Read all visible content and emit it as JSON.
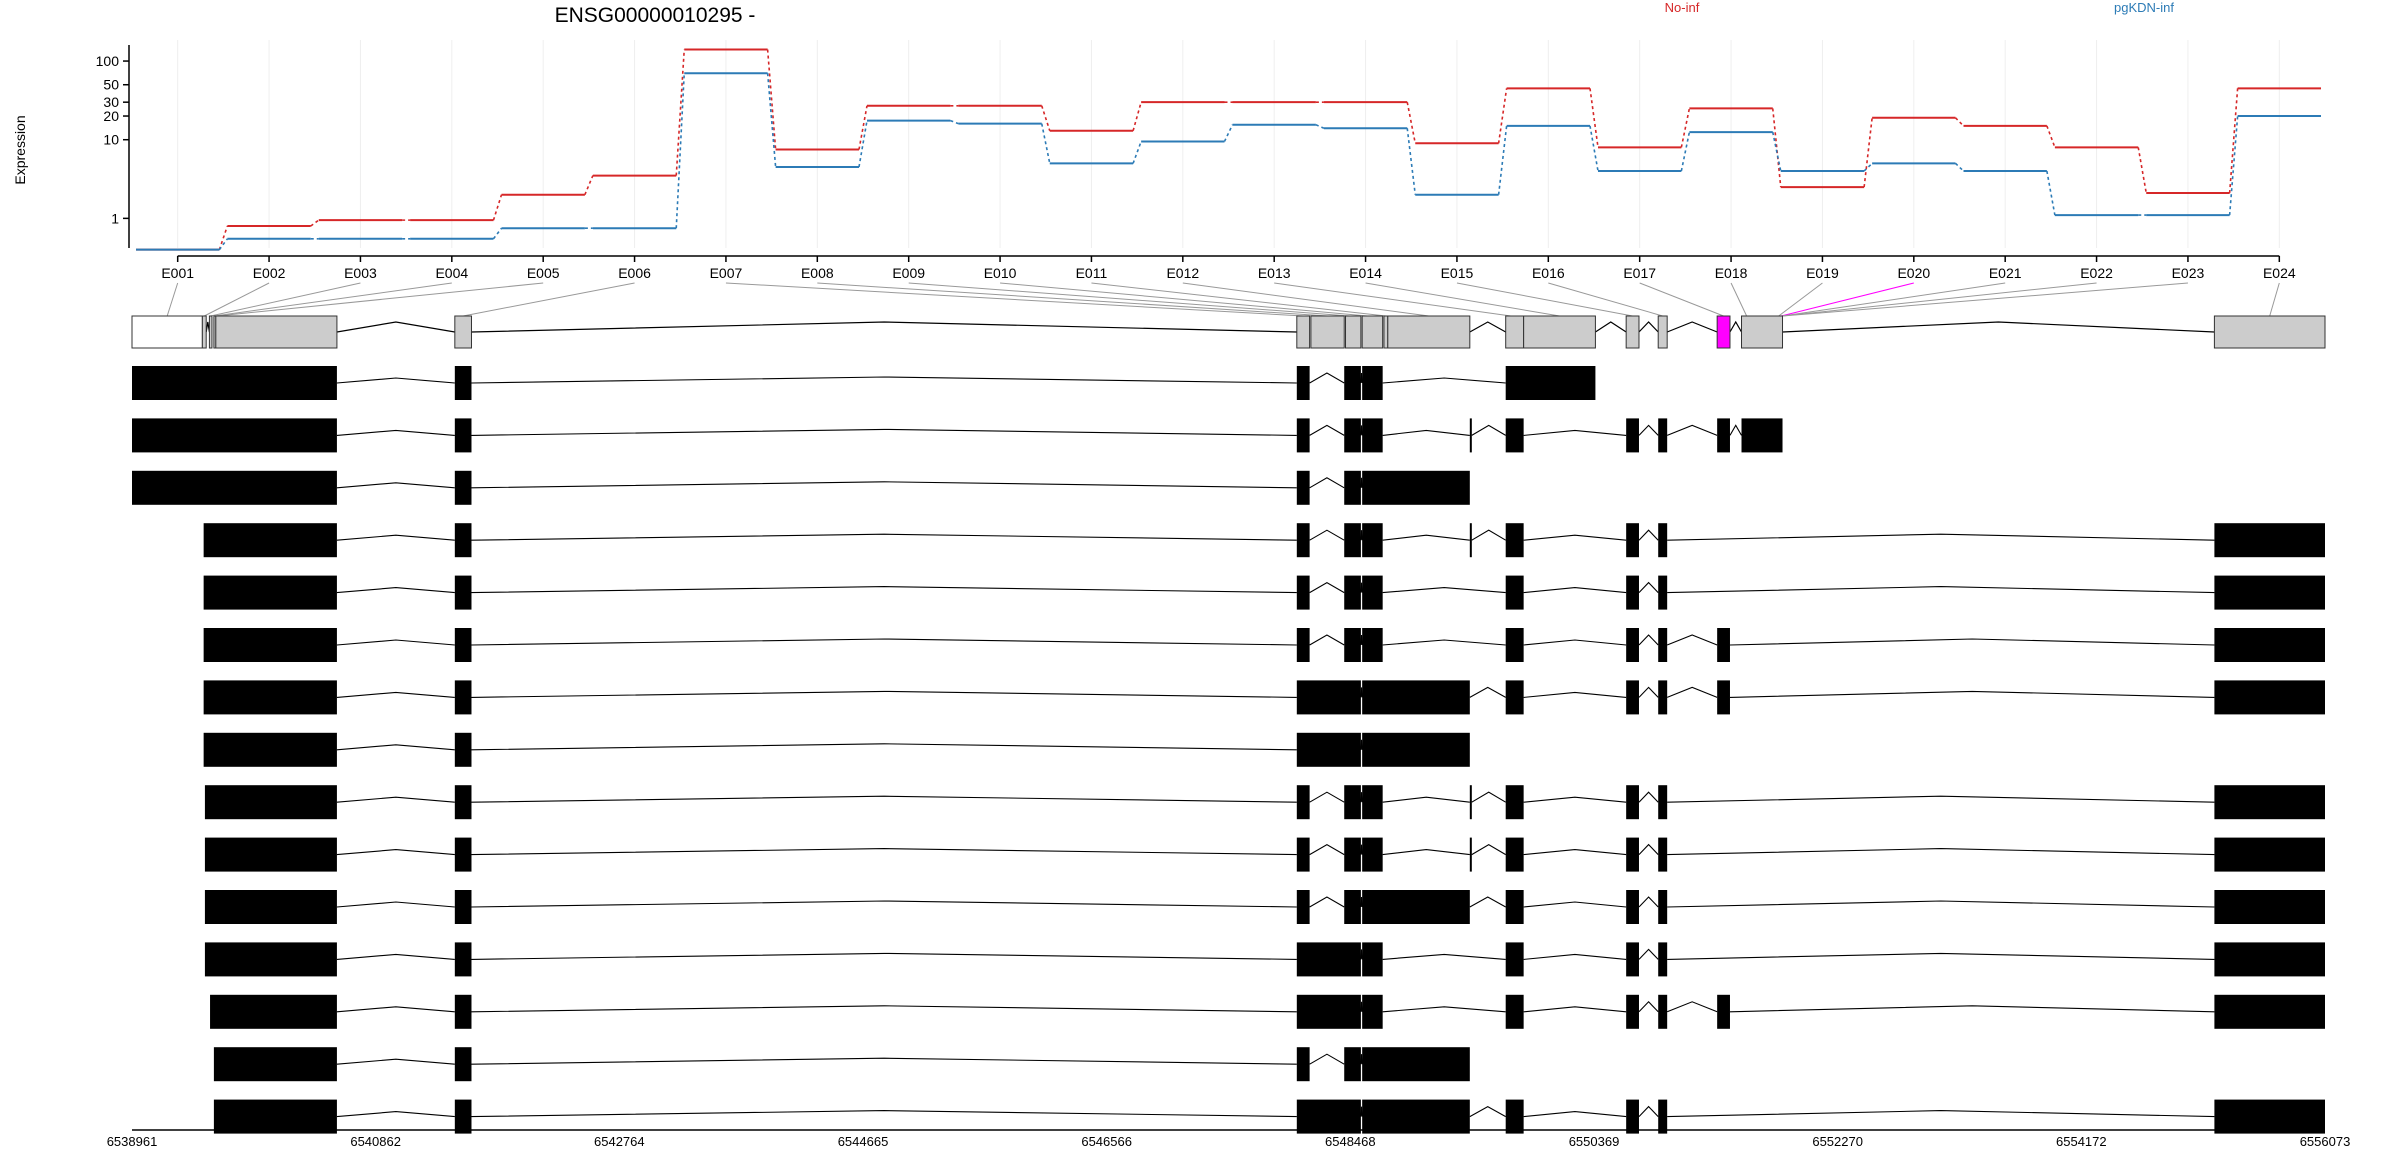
{
  "chart_data": {
    "type": "line",
    "title": "ENSG00000010295 -",
    "ylabel": "Expression",
    "y_scale": "log",
    "y_ticks": [
      "1",
      "10",
      "20",
      "30",
      "50",
      "100"
    ],
    "colors": {
      "No-inf": "#d62728",
      "pgKDN-inf": "#2c7bb6",
      "highlight_exon": "#ff00ff",
      "exon_fill": "#cccccc",
      "transcript_fill": "#000000"
    },
    "series": [
      {
        "name": "No-inf",
        "values": [
          0.4,
          0.8,
          0.95,
          0.95,
          2.0,
          3.5,
          140,
          7.5,
          27,
          27,
          13,
          30,
          30,
          30,
          9,
          45,
          8,
          25,
          2.5,
          19,
          15,
          8,
          2.1,
          45
        ]
      },
      {
        "name": "pgKDN-inf",
        "values": [
          0.4,
          0.55,
          0.55,
          0.55,
          0.75,
          0.75,
          70,
          4.5,
          17.5,
          16,
          5,
          9.5,
          15.5,
          14,
          2.0,
          15,
          4,
          12.5,
          4,
          5,
          4,
          1.1,
          1.1,
          20
        ]
      }
    ],
    "exons": [
      "E001",
      "E002",
      "E003",
      "E004",
      "E005",
      "E006",
      "E007",
      "E008",
      "E009",
      "E010",
      "E011",
      "E012",
      "E013",
      "E014",
      "E015",
      "E016",
      "E017",
      "E018",
      "E019",
      "E020",
      "E021",
      "E022",
      "E023",
      "E024"
    ],
    "genomic_axis": {
      "start": 6538961,
      "end": 6556073,
      "tick_labels": [
        "6538961",
        "6540862",
        "6542764",
        "6544665",
        "6546566",
        "6548468",
        "6550369",
        "6552270",
        "6554172",
        "6556073"
      ]
    },
    "gene_model": [
      [
        6538961,
        6539510
      ],
      [
        6539510,
        6539540
      ],
      [
        6539565,
        6539585
      ],
      [
        6539600,
        6539610
      ],
      [
        6539615,
        6540560
      ],
      [
        6541480,
        6541610
      ],
      [
        6548050,
        6548150
      ],
      [
        6548160,
        6548420
      ],
      [
        6548430,
        6548550
      ],
      [
        6548560,
        6548720
      ],
      [
        6548730,
        6548760
      ],
      [
        6548760,
        6549400
      ],
      [
        6549680,
        6549820
      ],
      [
        6549820,
        6550380
      ],
      [
        6550620,
        6550720
      ],
      [
        6550870,
        6550940
      ],
      [
        6551330,
        6551430
      ],
      [
        6551520,
        6551840
      ],
      [
        6555210,
        6556073
      ]
    ],
    "highlight_exon_index": 16,
    "transcripts": [
      [
        [
          6538961,
          6540560
        ],
        [
          6541480,
          6541610
        ],
        [
          6548050,
          6548150
        ],
        [
          6548420,
          6548550
        ],
        [
          6548560,
          6548720
        ],
        [
          6549680,
          6550380
        ]
      ],
      [
        [
          6538961,
          6540560
        ],
        [
          6541480,
          6541610
        ],
        [
          6548050,
          6548150
        ],
        [
          6548420,
          6548550
        ],
        [
          6548560,
          6548720
        ],
        [
          6549400,
          6549415
        ],
        [
          6549680,
          6549820
        ],
        [
          6550620,
          6550720
        ],
        [
          6550870,
          6550940
        ],
        [
          6551330,
          6551430
        ],
        [
          6551520,
          6551840
        ]
      ],
      [
        [
          6538961,
          6540560
        ],
        [
          6541480,
          6541610
        ],
        [
          6548050,
          6548150
        ],
        [
          6548420,
          6548550
        ],
        [
          6548560,
          6549400
        ]
      ],
      [
        [
          6539520,
          6540560
        ],
        [
          6541480,
          6541610
        ],
        [
          6548050,
          6548150
        ],
        [
          6548420,
          6548550
        ],
        [
          6548560,
          6548720
        ],
        [
          6549400,
          6549415
        ],
        [
          6549680,
          6549820
        ],
        [
          6550620,
          6550720
        ],
        [
          6550870,
          6550940
        ],
        [
          6555210,
          6556073
        ]
      ],
      [
        [
          6539520,
          6540560
        ],
        [
          6541480,
          6541610
        ],
        [
          6548050,
          6548150
        ],
        [
          6548420,
          6548550
        ],
        [
          6548560,
          6548720
        ],
        [
          6549680,
          6549820
        ],
        [
          6550620,
          6550720
        ],
        [
          6550870,
          6550940
        ],
        [
          6555210,
          6556073
        ]
      ],
      [
        [
          6539520,
          6540560
        ],
        [
          6541480,
          6541610
        ],
        [
          6548050,
          6548150
        ],
        [
          6548420,
          6548550
        ],
        [
          6548560,
          6548720
        ],
        [
          6549680,
          6549820
        ],
        [
          6550620,
          6550720
        ],
        [
          6550870,
          6550940
        ],
        [
          6551330,
          6551430
        ],
        [
          6555210,
          6556073
        ]
      ],
      [
        [
          6539520,
          6540560
        ],
        [
          6541480,
          6541610
        ],
        [
          6548050,
          6548550
        ],
        [
          6548560,
          6549400
        ],
        [
          6549680,
          6549820
        ],
        [
          6550620,
          6550720
        ],
        [
          6550870,
          6550940
        ],
        [
          6551330,
          6551430
        ],
        [
          6555210,
          6556073
        ]
      ],
      [
        [
          6539520,
          6540560
        ],
        [
          6541480,
          6541610
        ],
        [
          6548050,
          6548550
        ],
        [
          6548560,
          6549400
        ]
      ],
      [
        [
          6539530,
          6540560
        ],
        [
          6541480,
          6541610
        ],
        [
          6548050,
          6548150
        ],
        [
          6548420,
          6548550
        ],
        [
          6548560,
          6548720
        ],
        [
          6549400,
          6549415
        ],
        [
          6549680,
          6549820
        ],
        [
          6550620,
          6550720
        ],
        [
          6550870,
          6550940
        ],
        [
          6555210,
          6556073
        ]
      ],
      [
        [
          6539530,
          6540560
        ],
        [
          6541480,
          6541610
        ],
        [
          6548050,
          6548150
        ],
        [
          6548420,
          6548550
        ],
        [
          6548560,
          6548720
        ],
        [
          6549400,
          6549415
        ],
        [
          6549680,
          6549820
        ],
        [
          6550620,
          6550720
        ],
        [
          6550870,
          6550940
        ],
        [
          6555210,
          6556073
        ]
      ],
      [
        [
          6539530,
          6540560
        ],
        [
          6541480,
          6541610
        ],
        [
          6548050,
          6548150
        ],
        [
          6548420,
          6548550
        ],
        [
          6548560,
          6549400
        ],
        [
          6549680,
          6549820
        ],
        [
          6550620,
          6550720
        ],
        [
          6550870,
          6550940
        ],
        [
          6555210,
          6556073
        ]
      ],
      [
        [
          6539530,
          6540560
        ],
        [
          6541480,
          6541610
        ],
        [
          6548050,
          6548550
        ],
        [
          6548560,
          6548720
        ],
        [
          6549680,
          6549820
        ],
        [
          6550620,
          6550720
        ],
        [
          6550870,
          6550940
        ],
        [
          6555210,
          6556073
        ]
      ],
      [
        [
          6539570,
          6540560
        ],
        [
          6541480,
          6541610
        ],
        [
          6548050,
          6548550
        ],
        [
          6548560,
          6548720
        ],
        [
          6549680,
          6549820
        ],
        [
          6550620,
          6550720
        ],
        [
          6550870,
          6550940
        ],
        [
          6551330,
          6551430
        ],
        [
          6555210,
          6556073
        ]
      ],
      [
        [
          6539600,
          6540560
        ],
        [
          6541480,
          6541610
        ],
        [
          6548050,
          6548150
        ],
        [
          6548420,
          6548550
        ],
        [
          6548560,
          6549400
        ]
      ],
      [
        [
          6539600,
          6540560
        ],
        [
          6541480,
          6541610
        ],
        [
          6548050,
          6548550
        ],
        [
          6548560,
          6549400
        ],
        [
          6549680,
          6549820
        ],
        [
          6550620,
          6550720
        ],
        [
          6550870,
          6550940
        ],
        [
          6555210,
          6556073
        ]
      ]
    ]
  }
}
